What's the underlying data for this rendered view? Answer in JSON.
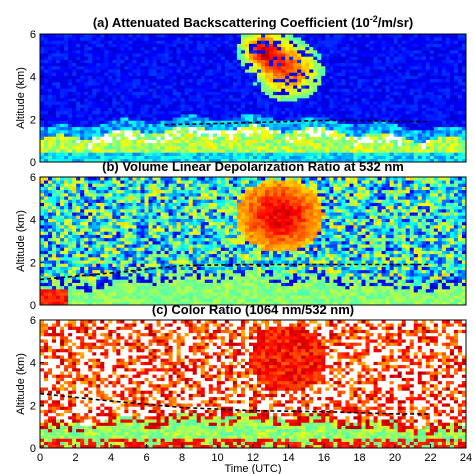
{
  "chart_data": [
    {
      "type": "heatmap",
      "title": "(a) Attenuated Backscattering Coefficient (10",
      "title_sup": "-2",
      "title_tail": "/m/sr)",
      "ylabel": "Altitude (km)",
      "xlabel": "",
      "xlim": [
        0,
        24
      ],
      "ylim": [
        0,
        6
      ],
      "yticks": [
        "0",
        "2",
        "4",
        "6"
      ],
      "xticks": [],
      "style": "backscatter",
      "dashed_line": {
        "x": [
          7,
          10,
          12,
          14,
          16,
          18,
          20,
          22
        ],
        "y": [
          1.75,
          1.8,
          1.85,
          1.9,
          1.95,
          1.95,
          1.9,
          1.9
        ]
      }
    },
    {
      "type": "heatmap",
      "title": "(b) Volume Linear Depolarization Ratio at 532 nm",
      "ylabel": "Altitude (km)",
      "xlabel": "",
      "xlim": [
        0,
        24
      ],
      "ylim": [
        0,
        6
      ],
      "yticks": [
        "0",
        "2",
        "4",
        "6"
      ],
      "xticks": [],
      "style": "depol",
      "dashed_line": {
        "x": [
          0,
          4,
          8,
          12,
          16,
          20,
          22
        ],
        "y": [
          1.2,
          1.5,
          1.85,
          1.9,
          1.9,
          1.9,
          1.9
        ]
      }
    },
    {
      "type": "heatmap",
      "title": "(c) Color Ratio (1064 nm/532 nm)",
      "ylabel": "Altitude (km)",
      "xlabel": "Time (UTC)",
      "xlim": [
        0,
        24
      ],
      "ylim": [
        0,
        6
      ],
      "yticks": [
        "0",
        "2",
        "4",
        "6"
      ],
      "xticks": [
        "0",
        "2",
        "4",
        "6",
        "8",
        "10",
        "12",
        "14",
        "16",
        "18",
        "20",
        "22",
        "24"
      ],
      "style": "color",
      "dashed_line": {
        "x": [
          0,
          4,
          8,
          12,
          16,
          20,
          22
        ],
        "y": [
          2.55,
          2.2,
          1.9,
          1.75,
          1.7,
          1.6,
          1.6
        ]
      }
    }
  ]
}
